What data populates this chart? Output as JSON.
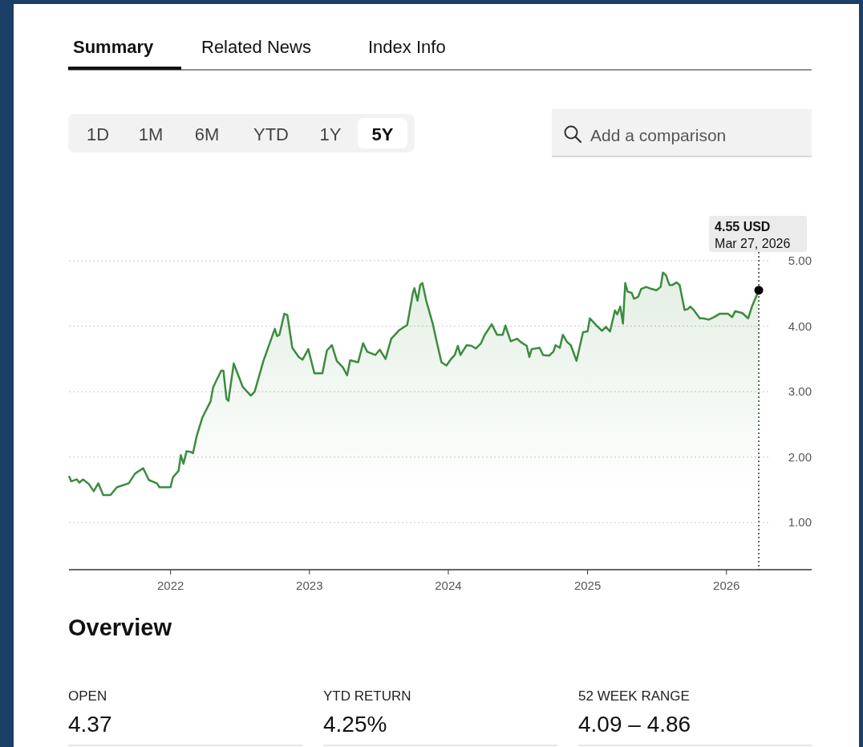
{
  "chart_data": [
    {
      "type": "other",
      "annotations": [
        "Summary",
        "Related News",
        "Index Info"
      ]
    },
    {
      "type": "other",
      "annotations": [
        "1D",
        "1M",
        "6M",
        "YTD",
        "1Y",
        "5Y",
        "Add a comparison"
      ]
    },
    {
      "type": "area",
      "color": "#3d8b40",
      "grid": "y",
      "xlim": [
        "2021-04-09",
        "2026-08-13"
      ],
      "xticks": [
        "2022",
        "2023",
        "2024",
        "2025",
        "2026"
      ],
      "ylim": [
        0.28,
        5
      ],
      "yticks": [
        {
          "value": 1,
          "label": "1.00"
        },
        {
          "value": 2,
          "label": "2.00"
        },
        {
          "value": 3,
          "label": "3.00"
        },
        {
          "value": 4,
          "label": "4.00"
        },
        {
          "value": 5,
          "label": "5.00"
        }
      ],
      "x": [
        "2021-04-09",
        "2021-04-15",
        "2021-04-30",
        "2021-05-06",
        "2021-05-16",
        "2021-05-31",
        "2021-06-13",
        "2021-06-25",
        "2021-07-08",
        "2021-07-27",
        "2021-08-13",
        "2021-09-13",
        "2021-09-30",
        "2021-10-21",
        "2021-11-05",
        "2021-11-26",
        "2021-12-03",
        "2022-01-01",
        "2022-01-07",
        "2022-01-22",
        "2022-01-28",
        "2022-02-04",
        "2022-02-12",
        "2022-02-23",
        "2022-03-01",
        "2022-03-11",
        "2022-03-26",
        "2022-04-16",
        "2022-04-23",
        "2022-05-14",
        "2022-05-20",
        "2022-05-28",
        "2022-06-02",
        "2022-06-16",
        "2022-07-10",
        "2022-07-31",
        "2022-08-10",
        "2022-09-02",
        "2022-10-02",
        "2022-10-08",
        "2022-10-14",
        "2022-10-27",
        "2022-11-04",
        "2022-11-17",
        "2022-12-04",
        "2022-12-14",
        "2022-12-29",
        "2023-01-14",
        "2023-01-26",
        "2023-02-04",
        "2023-02-16",
        "2023-03-01",
        "2023-03-14",
        "2023-03-30",
        "2023-04-10",
        "2023-04-18",
        "2023-05-09",
        "2023-05-22",
        "2023-06-02",
        "2023-06-23",
        "2023-07-05",
        "2023-07-20",
        "2023-08-04",
        "2023-08-14",
        "2023-08-25",
        "2023-09-15",
        "2023-09-30",
        "2023-10-04",
        "2023-10-12",
        "2023-10-19",
        "2023-10-25",
        "2023-11-04",
        "2023-11-21",
        "2023-12-02",
        "2023-12-14",
        "2023-12-27",
        "2024-01-07",
        "2024-01-18",
        "2024-01-26",
        "2024-02-02",
        "2024-02-18",
        "2024-03-02",
        "2024-03-13",
        "2024-03-27",
        "2024-04-05",
        "2024-04-24",
        "2024-05-08",
        "2024-05-23",
        "2024-05-30",
        "2024-06-13",
        "2024-06-30",
        "2024-07-09",
        "2024-07-25",
        "2024-08-01",
        "2024-08-07",
        "2024-08-28",
        "2024-09-06",
        "2024-09-22",
        "2024-10-03",
        "2024-10-09",
        "2024-10-20",
        "2024-10-28",
        "2024-11-08",
        "2024-11-18",
        "2024-12-03",
        "2024-12-20",
        "2025-01-01",
        "2025-01-07",
        "2025-01-28",
        "2025-02-08",
        "2025-02-18",
        "2025-03-01",
        "2025-03-14",
        "2025-03-20",
        "2025-03-28",
        "2025-04-04",
        "2025-04-10",
        "2025-04-16",
        "2025-04-27",
        "2025-05-03",
        "2025-05-14",
        "2025-05-22",
        "2025-06-04",
        "2025-06-18",
        "2025-07-01",
        "2025-07-12",
        "2025-07-18",
        "2025-07-26",
        "2025-08-04",
        "2025-08-12",
        "2025-08-23",
        "2025-08-31",
        "2025-09-13",
        "2025-09-21",
        "2025-09-28",
        "2025-10-08",
        "2025-10-23",
        "2025-11-02",
        "2025-11-15",
        "2025-11-30",
        "2025-12-14",
        "2026-01-05",
        "2026-01-16",
        "2026-01-24",
        "2026-02-12",
        "2026-02-27",
        "2026-03-09",
        "2026-03-27"
      ],
      "values": [
        1.71,
        1.63,
        1.66,
        1.61,
        1.66,
        1.59,
        1.48,
        1.6,
        1.42,
        1.42,
        1.54,
        1.6,
        1.75,
        1.83,
        1.65,
        1.6,
        1.54,
        1.54,
        1.69,
        1.79,
        2.03,
        1.9,
        2.09,
        2.08,
        2.06,
        2.33,
        2.61,
        2.85,
        3.07,
        3.32,
        3.32,
        2.89,
        2.86,
        3.43,
        3.07,
        2.94,
        3.0,
        3.47,
        3.96,
        3.85,
        3.87,
        4.19,
        4.17,
        3.67,
        3.53,
        3.49,
        3.65,
        3.28,
        3.28,
        3.28,
        3.63,
        3.71,
        3.47,
        3.37,
        3.25,
        3.48,
        3.45,
        3.74,
        3.61,
        3.56,
        3.64,
        3.5,
        3.81,
        3.87,
        3.94,
        4.02,
        4.51,
        4.58,
        4.39,
        4.63,
        4.66,
        4.39,
        4.04,
        3.75,
        3.45,
        3.4,
        3.49,
        3.56,
        3.7,
        3.56,
        3.71,
        3.7,
        3.66,
        3.74,
        3.86,
        4.03,
        3.87,
        3.87,
        4.01,
        3.77,
        3.81,
        3.76,
        3.7,
        3.53,
        3.65,
        3.67,
        3.56,
        3.55,
        3.61,
        3.71,
        3.67,
        3.87,
        3.76,
        3.71,
        3.47,
        3.91,
        3.92,
        4.12,
        3.99,
        3.93,
        3.99,
        3.92,
        4.24,
        4.18,
        4.3,
        4.04,
        4.66,
        4.53,
        4.51,
        4.42,
        4.45,
        4.57,
        4.6,
        4.57,
        4.55,
        4.6,
        4.82,
        4.78,
        4.63,
        4.63,
        4.67,
        4.63,
        4.25,
        4.26,
        4.3,
        4.24,
        4.12,
        4.12,
        4.1,
        4.14,
        4.19,
        4.19,
        4.14,
        4.23,
        4.2,
        4.12,
        4.3,
        4.55
      ],
      "ref_lines": [
        {
          "axis": "x",
          "value": "2026-03-27",
          "line_style": "dotted",
          "color": "#333333"
        }
      ],
      "annotations": [
        "4.55 USD",
        "Mar 27, 2026"
      ]
    },
    {
      "type": "other",
      "title": "Overview",
      "annotations": [
        "OPEN",
        "4.37",
        "YTD RETURN",
        "4.25%",
        "52 WEEK RANGE",
        "4.09 – 4.86"
      ]
    }
  ]
}
